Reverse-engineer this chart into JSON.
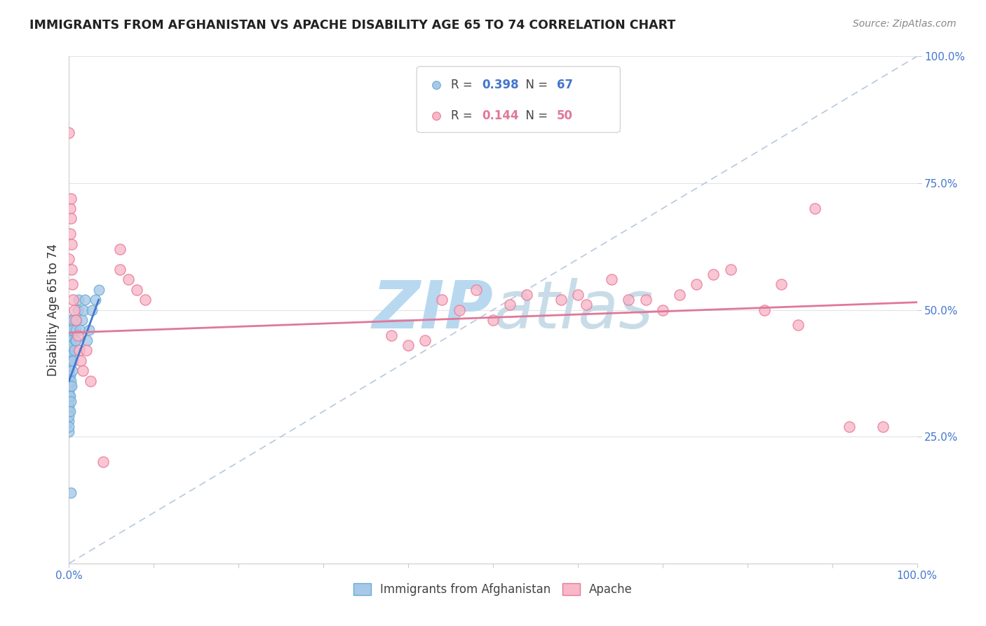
{
  "title": "IMMIGRANTS FROM AFGHANISTAN VS APACHE DISABILITY AGE 65 TO 74 CORRELATION CHART",
  "source": "Source: ZipAtlas.com",
  "ylabel": "Disability Age 65 to 74",
  "watermark": "ZIPatlas",
  "watermark_color": "#cce4f5",
  "background_color": "#ffffff",
  "legend_r_n": [
    {
      "R": "0.398",
      "N": "67",
      "dot_color": "#a8c8e8",
      "dot_edge": "#6aaad4",
      "text_color": "#4477cc"
    },
    {
      "R": "0.144",
      "N": "50",
      "dot_color": "#f8b8c8",
      "dot_edge": "#e87898",
      "text_color": "#e07898"
    }
  ],
  "blue_scatter_x": [
    0.0,
    0.0,
    0.0,
    0.0,
    0.0,
    0.0,
    0.0,
    0.0,
    0.0,
    0.0,
    0.0,
    0.0,
    0.0,
    0.0,
    0.0,
    0.0,
    0.0,
    0.0,
    0.0,
    0.0,
    0.0,
    0.0,
    0.0,
    0.0,
    0.0,
    0.0,
    0.0,
    0.0,
    0.0,
    0.0,
    0.001,
    0.001,
    0.001,
    0.001,
    0.001,
    0.001,
    0.001,
    0.001,
    0.001,
    0.001,
    0.002,
    0.002,
    0.002,
    0.002,
    0.003,
    0.003,
    0.004,
    0.004,
    0.005,
    0.005,
    0.006,
    0.007,
    0.008,
    0.009,
    0.01,
    0.011,
    0.013,
    0.015,
    0.017,
    0.019,
    0.021,
    0.024,
    0.027,
    0.031,
    0.035,
    0.008,
    0.002
  ],
  "blue_scatter_y": [
    0.33,
    0.35,
    0.36,
    0.37,
    0.38,
    0.39,
    0.4,
    0.28,
    0.3,
    0.32,
    0.34,
    0.36,
    0.38,
    0.4,
    0.42,
    0.44,
    0.26,
    0.29,
    0.31,
    0.33,
    0.35,
    0.37,
    0.39,
    0.41,
    0.43,
    0.45,
    0.27,
    0.32,
    0.38,
    0.44,
    0.3,
    0.33,
    0.35,
    0.37,
    0.39,
    0.41,
    0.43,
    0.45,
    0.47,
    0.48,
    0.32,
    0.36,
    0.4,
    0.44,
    0.35,
    0.43,
    0.38,
    0.46,
    0.4,
    0.48,
    0.42,
    0.44,
    0.46,
    0.48,
    0.5,
    0.52,
    0.46,
    0.48,
    0.5,
    0.52,
    0.44,
    0.46,
    0.5,
    0.52,
    0.54,
    0.44,
    0.14
  ],
  "pink_scatter_x": [
    0.0,
    0.0,
    0.001,
    0.001,
    0.002,
    0.002,
    0.003,
    0.003,
    0.004,
    0.005,
    0.006,
    0.008,
    0.01,
    0.012,
    0.014,
    0.016,
    0.02,
    0.025,
    0.04,
    0.06,
    0.06,
    0.07,
    0.08,
    0.09,
    0.38,
    0.4,
    0.42,
    0.44,
    0.46,
    0.48,
    0.5,
    0.52,
    0.54,
    0.58,
    0.6,
    0.61,
    0.64,
    0.66,
    0.68,
    0.7,
    0.72,
    0.74,
    0.76,
    0.78,
    0.82,
    0.84,
    0.86,
    0.88,
    0.92,
    0.96
  ],
  "pink_scatter_y": [
    0.85,
    0.6,
    0.7,
    0.65,
    0.72,
    0.68,
    0.63,
    0.58,
    0.55,
    0.52,
    0.5,
    0.48,
    0.45,
    0.42,
    0.4,
    0.38,
    0.42,
    0.36,
    0.2,
    0.62,
    0.58,
    0.56,
    0.54,
    0.52,
    0.45,
    0.43,
    0.44,
    0.52,
    0.5,
    0.54,
    0.48,
    0.51,
    0.53,
    0.52,
    0.53,
    0.51,
    0.56,
    0.52,
    0.52,
    0.5,
    0.53,
    0.55,
    0.57,
    0.58,
    0.5,
    0.55,
    0.47,
    0.7,
    0.27,
    0.27
  ],
  "blue_trend_x": [
    0.0,
    0.035
  ],
  "blue_trend_y": [
    0.36,
    0.52
  ],
  "pink_trend_x": [
    0.0,
    1.0
  ],
  "pink_trend_y": [
    0.455,
    0.515
  ],
  "ref_line_x": [
    0.0,
    1.0
  ],
  "ref_line_y": [
    0.0,
    1.0
  ],
  "xlim": [
    0.0,
    1.0
  ],
  "ylim": [
    0.0,
    1.0
  ],
  "x_ticks": [
    0.0,
    0.1,
    0.2,
    0.3,
    0.4,
    0.5,
    0.6,
    0.7,
    0.8,
    0.9,
    1.0
  ],
  "y_ticks": [
    0.25,
    0.5,
    0.75,
    1.0
  ],
  "y_tick_labels": [
    "25.0%",
    "50.0%",
    "75.0%",
    "100.0%"
  ],
  "x_tick_labels_show": [
    "0.0%",
    "100.0%"
  ]
}
